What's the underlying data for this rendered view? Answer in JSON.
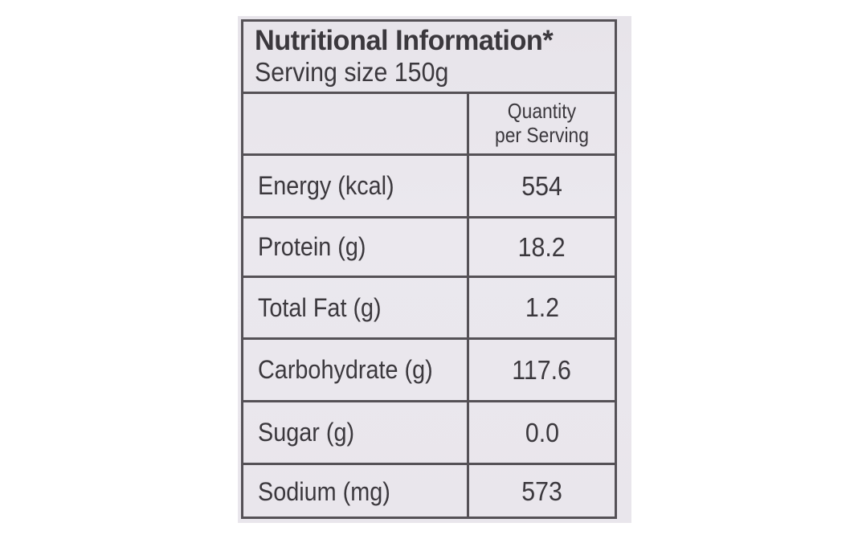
{
  "label": {
    "title": "Nutritional Information*",
    "serving_size": "Serving size 150g",
    "column_header": {
      "line1": "Quantity",
      "line2": "per Serving"
    },
    "rows": [
      {
        "name": "Energy (kcal)",
        "value": "554"
      },
      {
        "name": "Protein (g)",
        "value": "18.2"
      },
      {
        "name": "Total Fat (g)",
        "value": "1.2"
      },
      {
        "name": "Carbohydrate (g)",
        "value": "117.6"
      },
      {
        "name": "Sugar (g)",
        "value": "0.0"
      },
      {
        "name": "Sodium (mg)",
        "value": "573"
      }
    ]
  }
}
